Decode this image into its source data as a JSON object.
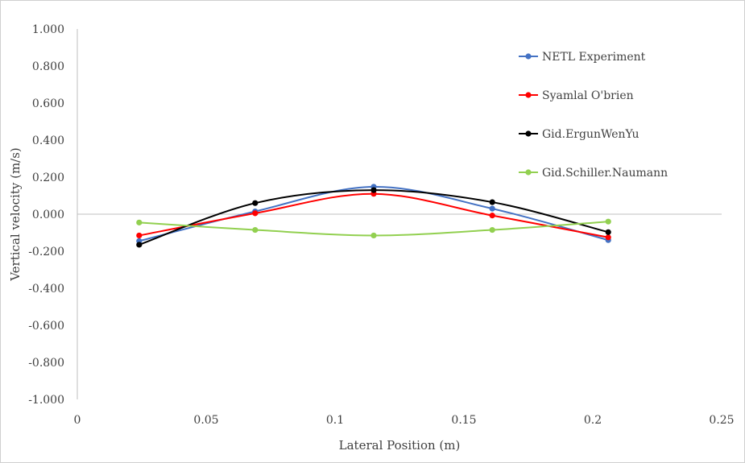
{
  "chart_data": {
    "type": "line",
    "xlabel": "Lateral Position  (m)",
    "ylabel": "Vertical velocity  (m/s)",
    "xlim": [
      0,
      0.25
    ],
    "ylim": [
      -1.0,
      1.0
    ],
    "x_ticks": [
      0,
      0.05,
      0.1,
      0.15,
      0.2,
      0.25
    ],
    "x_tick_labels": [
      "0",
      "0.05",
      "0.1",
      "0.15",
      "0.2",
      "0.25"
    ],
    "y_ticks": [
      1.0,
      0.8,
      0.6,
      0.4,
      0.2,
      0.0,
      -0.2,
      -0.4,
      -0.6,
      -0.8,
      -1.0
    ],
    "y_tick_labels": [
      "1.000",
      "0.800",
      "0.600",
      "0.400",
      "0.200",
      "0.000",
      "-0.200",
      "-0.400",
      "-0.600",
      "-0.800",
      "-1.000"
    ],
    "x": [
      0.024,
      0.069,
      0.115,
      0.161,
      0.206
    ],
    "legend_position": "right",
    "smooth": true,
    "series": [
      {
        "name": "NETL Experiment",
        "color": "#4472c4",
        "values": [
          -0.145,
          0.015,
          0.148,
          0.03,
          -0.14
        ]
      },
      {
        "name": "Syamlal O'brien",
        "color": "#ff0000",
        "values": [
          -0.115,
          0.005,
          0.11,
          -0.007,
          -0.125
        ]
      },
      {
        "name": "Gid.ErgunWenYu",
        "color": "#000000",
        "values": [
          -0.165,
          0.06,
          0.13,
          0.065,
          -0.097
        ]
      },
      {
        "name": "Gid.Schiller.Naumann",
        "color": "#92d050",
        "values": [
          -0.045,
          -0.085,
          -0.115,
          -0.085,
          -0.04
        ]
      }
    ]
  }
}
